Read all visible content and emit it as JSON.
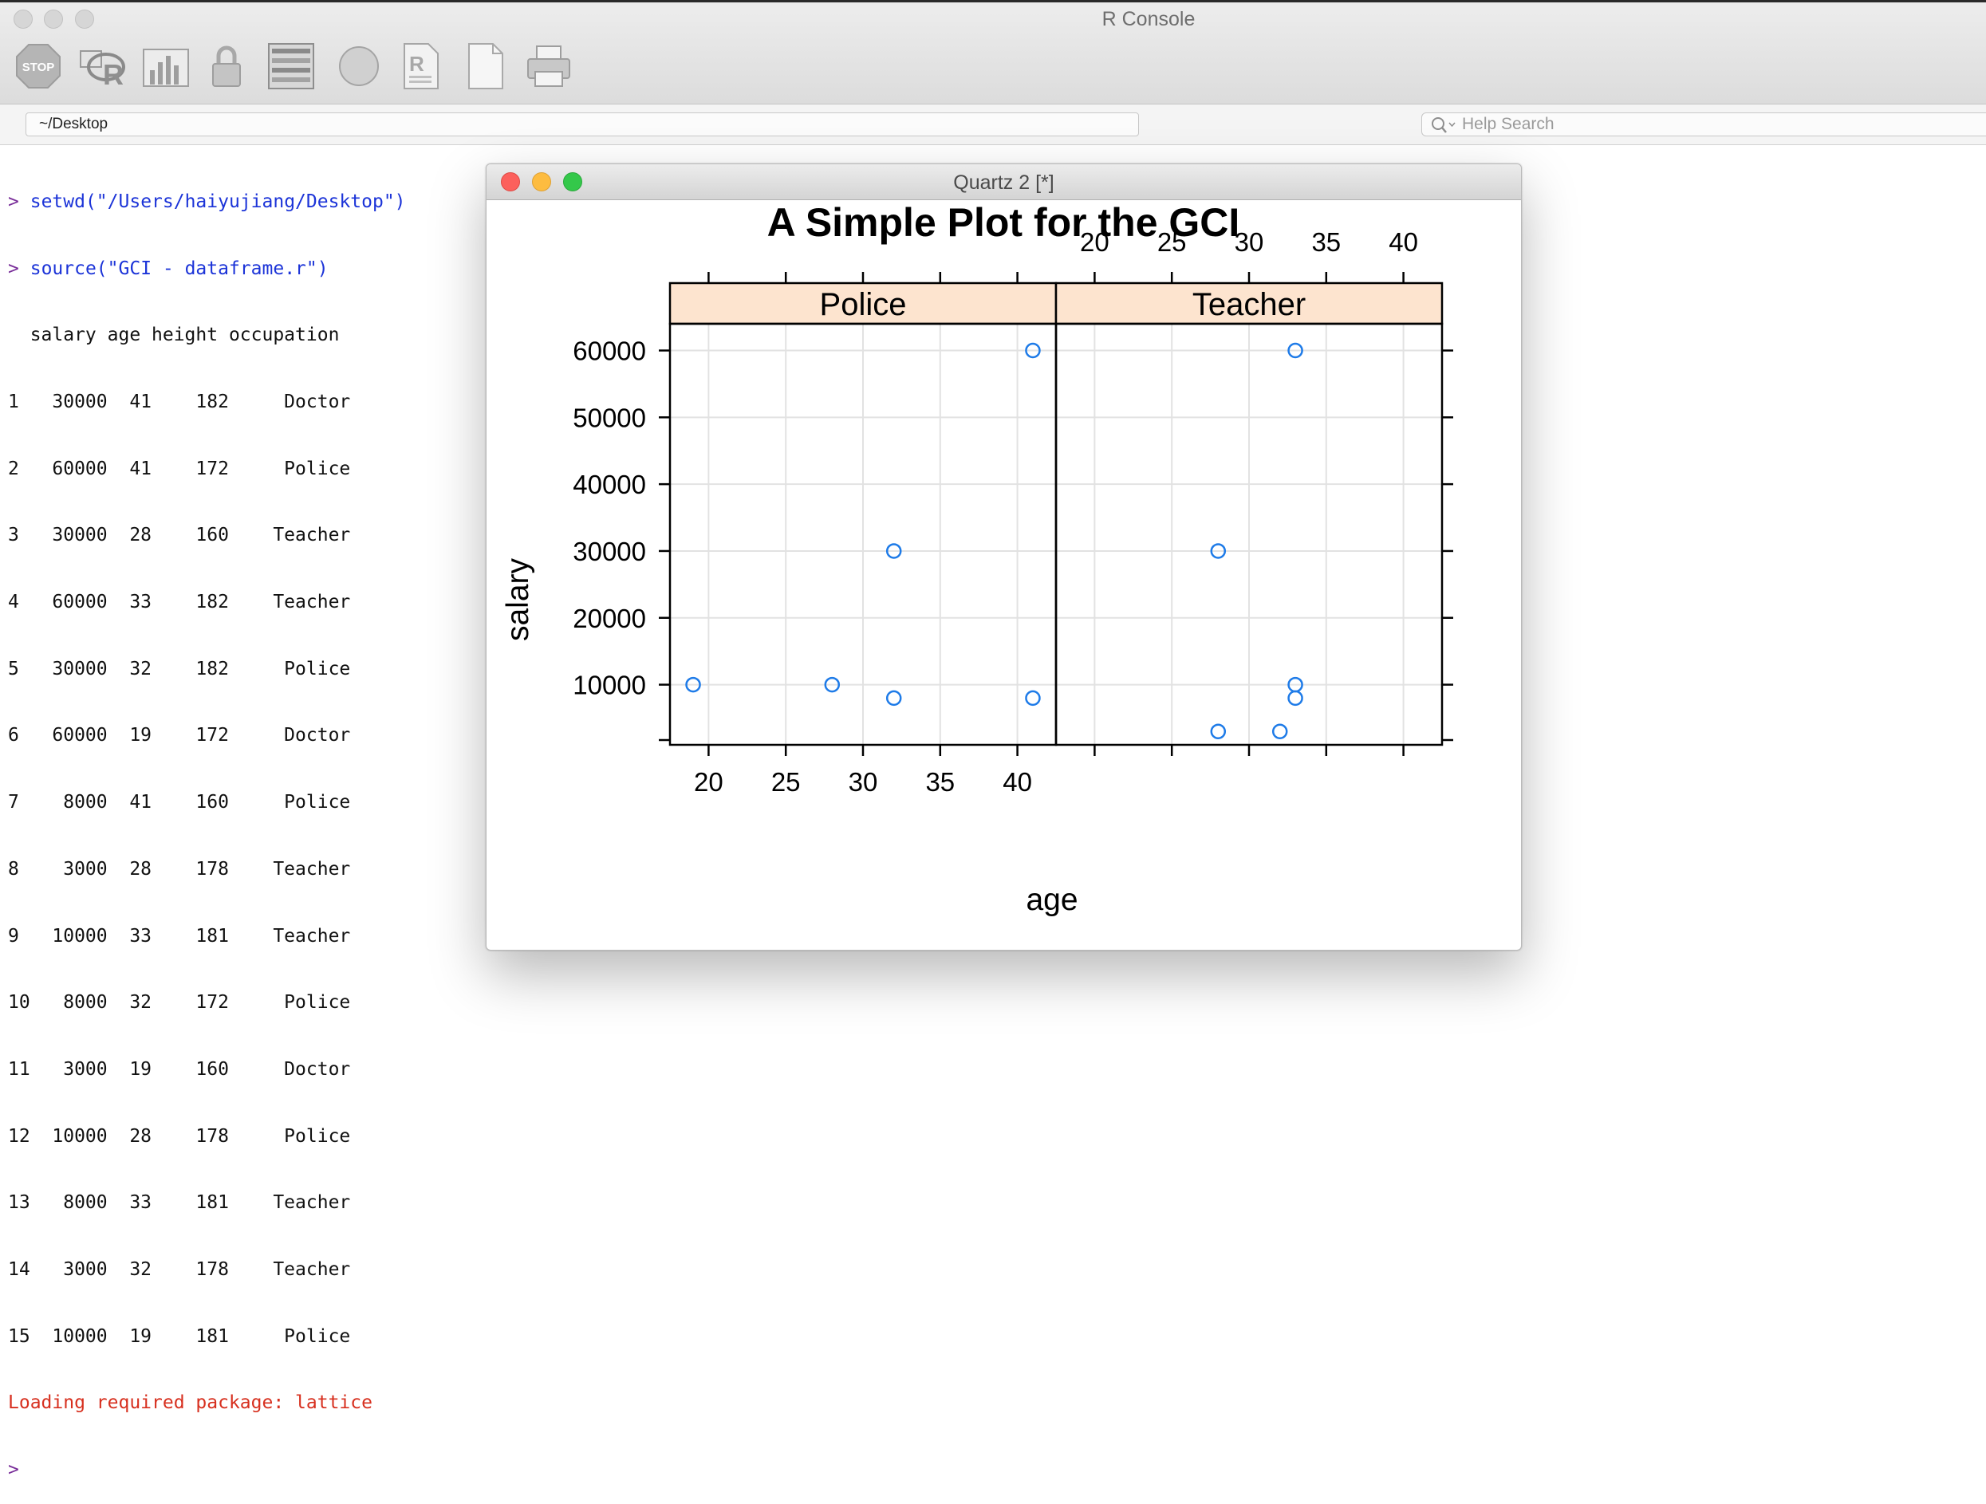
{
  "window": {
    "title": "R Console"
  },
  "toolbar": {
    "stop_label": "STOP",
    "buttons": [
      {
        "name": "stop-icon"
      },
      {
        "name": "r-source-icon"
      },
      {
        "name": "bar-chart-icon"
      },
      {
        "name": "lock-icon"
      },
      {
        "name": "list-icon"
      },
      {
        "name": "circle-icon"
      },
      {
        "name": "r-document-icon"
      },
      {
        "name": "new-document-icon"
      },
      {
        "name": "printer-icon"
      }
    ]
  },
  "pathbar": {
    "path": "~/Desktop",
    "search_placeholder": "Help Search"
  },
  "console": {
    "prompt": ">",
    "commands": [
      "setwd(\"/Users/haiyujiang/Desktop\")",
      "source(\"GCI - dataframe.r\")"
    ],
    "table_header": "  salary age height occupation",
    "rows": [
      "1   30000  41    182     Doctor",
      "2   60000  41    172     Police",
      "3   30000  28    160    Teacher",
      "4   60000  33    182    Teacher",
      "5   30000  32    182     Police",
      "6   60000  19    172     Doctor",
      "7    8000  41    160     Police",
      "8    3000  28    178    Teacher",
      "9   10000  33    181    Teacher",
      "10   8000  32    172     Police",
      "11   3000  19    160     Doctor",
      "12  10000  28    178     Police",
      "13   8000  33    181    Teacher",
      "14   3000  32    178    Teacher",
      "15  10000  19    181     Police"
    ],
    "message": "Loading required package: lattice"
  },
  "quartz": {
    "title": "Quartz 2 [*]"
  },
  "chart_data": {
    "type": "scatter",
    "title": "A Simple Plot for the GCI",
    "xlabel": "age",
    "ylabel": "salary",
    "xlim": [
      17.5,
      42.5
    ],
    "ylim": [
      1000,
      64000
    ],
    "xticks": [
      20,
      25,
      30,
      35,
      40
    ],
    "yticks": [
      10000,
      20000,
      30000,
      40000,
      50000,
      60000
    ],
    "grid": true,
    "strip_color": "#fde4cf",
    "point_color": "#1e7be8",
    "panels": [
      {
        "name": "Police",
        "points": [
          {
            "x": 41,
            "y": 60000
          },
          {
            "x": 32,
            "y": 30000
          },
          {
            "x": 19,
            "y": 10000
          },
          {
            "x": 28,
            "y": 10000
          },
          {
            "x": 32,
            "y": 8000
          },
          {
            "x": 41,
            "y": 8000
          }
        ]
      },
      {
        "name": "Teacher",
        "points": [
          {
            "x": 33,
            "y": 60000
          },
          {
            "x": 28,
            "y": 30000
          },
          {
            "x": 33,
            "y": 10000
          },
          {
            "x": 33,
            "y": 8000
          },
          {
            "x": 28,
            "y": 3000
          },
          {
            "x": 32,
            "y": 3000
          }
        ]
      }
    ]
  }
}
